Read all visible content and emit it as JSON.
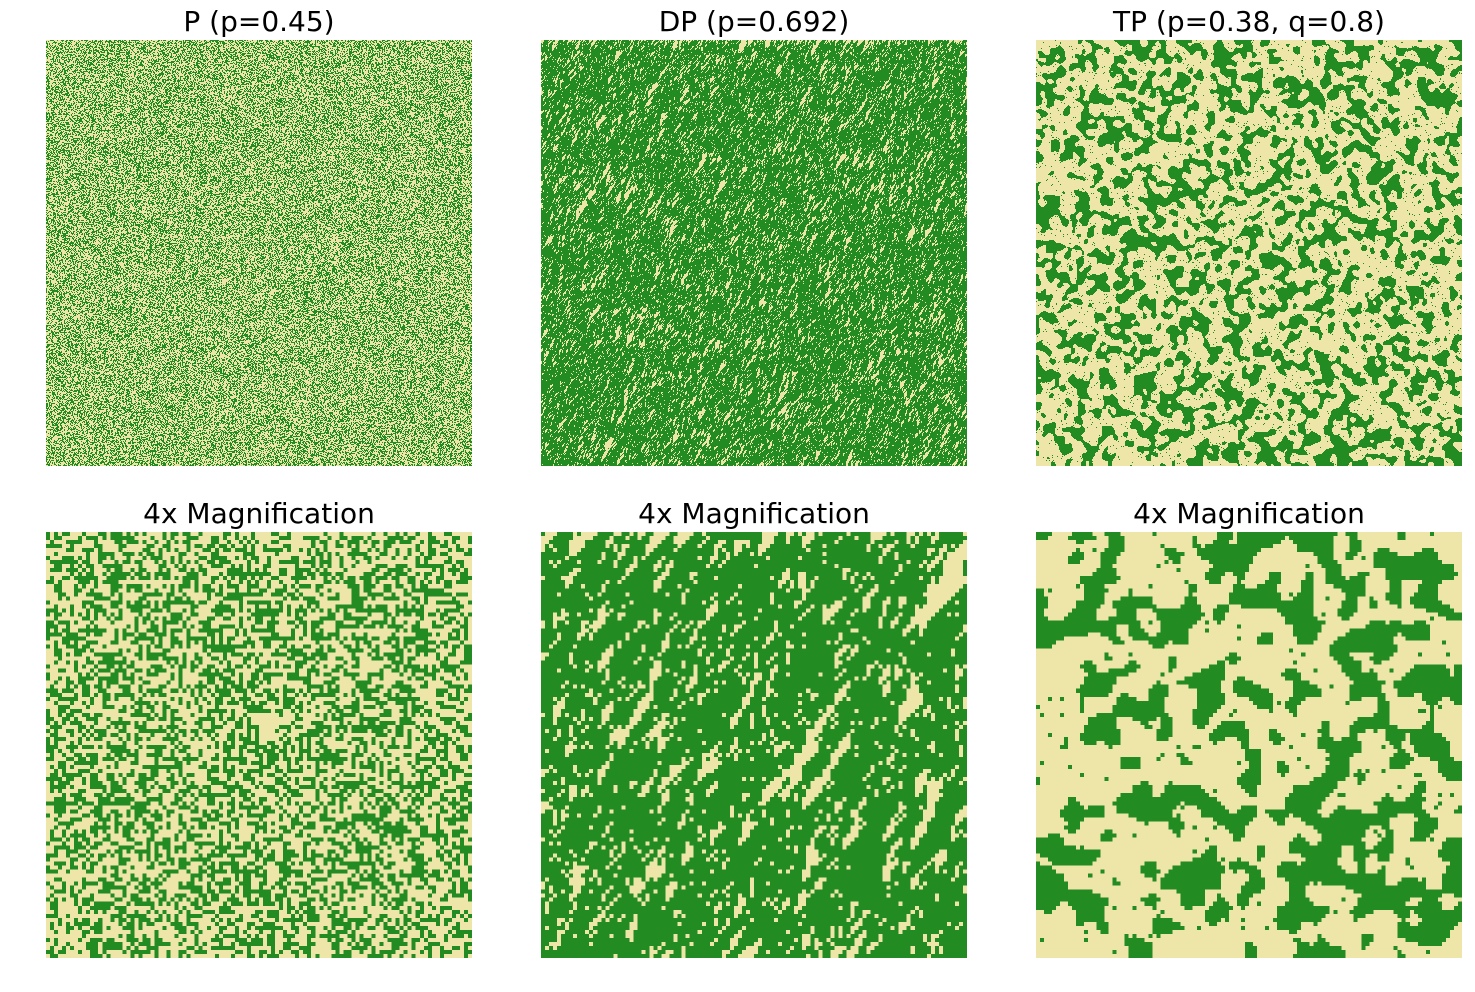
{
  "colors": {
    "occupied": "#228b22",
    "empty": "#eee6a8",
    "background": "#ffffff"
  },
  "chart_data": [
    {
      "type": "heatmap",
      "title": "P (p=0.45)",
      "model": "P",
      "params": {
        "p": 0.45
      },
      "grid_size": 426,
      "magnified": false
    },
    {
      "type": "heatmap",
      "title": "DP (p=0.692)",
      "model": "DP",
      "params": {
        "p": 0.692
      },
      "grid_size": 426,
      "magnified": false
    },
    {
      "type": "heatmap",
      "title": "TP (p=0.38, q=0.8)",
      "model": "TP",
      "params": {
        "p": 0.38,
        "q": 0.8
      },
      "grid_size": 426,
      "magnified": false
    },
    {
      "type": "heatmap",
      "title": "4x Magnification",
      "model": "P",
      "params": {
        "p": 0.45
      },
      "grid_size": 106,
      "magnified": true
    },
    {
      "type": "heatmap",
      "title": "4x Magnification",
      "model": "DP",
      "params": {
        "p": 0.692
      },
      "grid_size": 106,
      "magnified": true
    },
    {
      "type": "heatmap",
      "title": "4x Magnification",
      "model": "TP",
      "params": {
        "p": 0.38,
        "q": 0.8
      },
      "grid_size": 106,
      "magnified": true
    }
  ]
}
